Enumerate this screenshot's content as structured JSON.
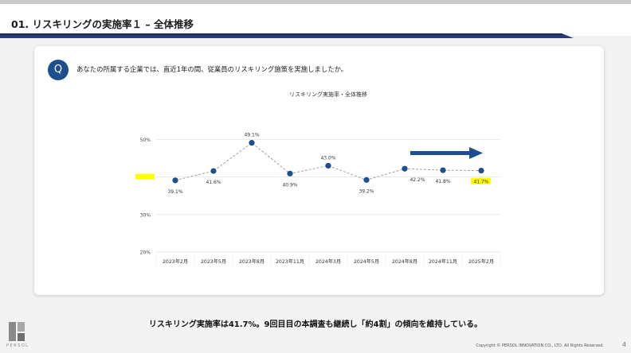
{
  "header": {
    "title": "01. リスキリングの実施率１ – 全体推移",
    "accent_color": "#2a3a7a"
  },
  "card": {
    "badge": "Q",
    "question": "あなたの所属する企業では、直近1年の間、従業員のリスキリング施策を実施しましたか。"
  },
  "chart_data": {
    "type": "line",
    "title": "リスキリング実施率・全体推移",
    "categories": [
      "2023年2月",
      "2023年5月",
      "2023年8月",
      "2023年11月",
      "2024年3月",
      "2024年5月",
      "2024年8月",
      "2024年11月",
      "2025年2月"
    ],
    "values": [
      39.1,
      41.6,
      49.1,
      40.9,
      43.0,
      39.2,
      42.2,
      41.8,
      41.7
    ],
    "value_labels": [
      "39.1%",
      "41.6%",
      "49.1%",
      "40.9%",
      "43.0%",
      "39.2%",
      "42.2%",
      "41.8%",
      "41.7%"
    ],
    "yticks": [
      "20%",
      "30%",
      "40%",
      "50%"
    ],
    "ylim": [
      20,
      52
    ],
    "grid": true,
    "line_color": "#a0a0a0",
    "marker_color": "#1d4f8f",
    "highlight_color": "#ffff00",
    "trend_arrow": "right"
  },
  "summary": "リスキリング実施率は41.7%。9回目目の本調査も継続し「約4割」の傾向を維持している。",
  "footer": {
    "brand": "PERSOL",
    "copyright": "Copyright © PERSOL INNOVATION CO., LTD. All Rights Reserved.",
    "page": "4"
  }
}
